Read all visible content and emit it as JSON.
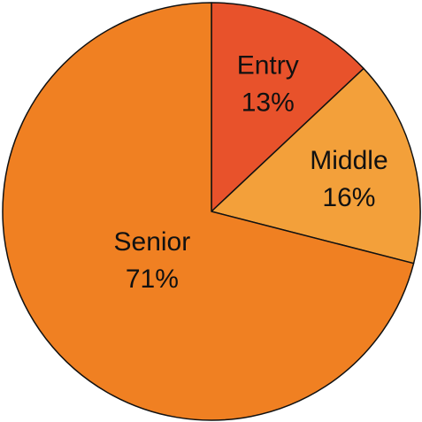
{
  "chart_data": {
    "type": "pie",
    "slices": [
      {
        "label": "Entry",
        "value": 13,
        "display": "13%",
        "color": "#e8522b"
      },
      {
        "label": "Middle",
        "value": 16,
        "display": "16%",
        "color": "#f3a03a"
      },
      {
        "label": "Senior",
        "value": 71,
        "display": "71%",
        "color": "#f08022"
      }
    ],
    "start": "12 o'clock",
    "direction": "clockwise"
  }
}
